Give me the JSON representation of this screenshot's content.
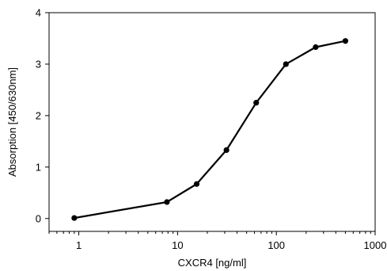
{
  "chart_data": {
    "type": "line",
    "title": "",
    "xlabel": "CXCR4 [ng/ml]",
    "ylabel": "Absorption [450/630nm]",
    "x_scale": "log",
    "xlim": [
      0.5,
      1000
    ],
    "ylim": [
      -0.25,
      4
    ],
    "x_ticks": [
      1,
      10,
      100,
      1000
    ],
    "x_tick_labels": [
      "1",
      "10",
      "100",
      "1000"
    ],
    "y_ticks": [
      0,
      1,
      2,
      3,
      4
    ],
    "y_tick_labels": [
      "0",
      "1",
      "2",
      "3",
      "4"
    ],
    "grid": false,
    "legend": "none",
    "series": [
      {
        "color": "#000000",
        "x": [
          0.9,
          7.8,
          15.6,
          31.25,
          62.5,
          125,
          250,
          500
        ],
        "y": [
          0.01,
          0.32,
          0.67,
          1.33,
          2.25,
          3.0,
          3.33,
          3.45
        ]
      }
    ]
  }
}
